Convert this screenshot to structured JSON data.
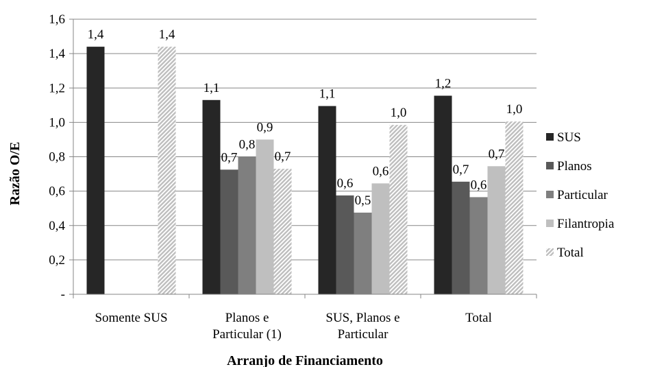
{
  "chart_data": {
    "type": "bar",
    "xlabel": "Arranjo de Financiamento",
    "ylabel": "Razão O/E",
    "ylim": [
      0,
      1.6
    ],
    "yticks": [
      0,
      0.2,
      0.4,
      0.6,
      0.8,
      1.0,
      1.2,
      1.4,
      1.6
    ],
    "ytick_labels": [
      "-",
      "0,2",
      "0,4",
      "0,6",
      "0,8",
      "1,0",
      "1,2",
      "1,4",
      "1,6"
    ],
    "grid": true,
    "legend_position": "right",
    "categories": [
      [
        "Somente SUS"
      ],
      [
        "Planos e",
        "Particular (1)"
      ],
      [
        "SUS, Planos e",
        "Particular"
      ],
      [
        "Total"
      ]
    ],
    "series": [
      {
        "name": "SUS",
        "color": "#262626",
        "pattern": "solid",
        "values": [
          1.44,
          1.13,
          1.095,
          1.155
        ],
        "labels": [
          "1,4",
          "1,1",
          "1,1",
          "1,2"
        ]
      },
      {
        "name": "Planos",
        "color": "#595959",
        "pattern": "solid",
        "values": [
          null,
          0.725,
          0.575,
          0.655
        ],
        "labels": [
          "",
          "0,7",
          "0,6",
          "0,7"
        ]
      },
      {
        "name": "Particular",
        "color": "#7f7f7f",
        "pattern": "solid",
        "values": [
          null,
          0.8,
          0.475,
          0.565
        ],
        "labels": [
          "",
          "0,8",
          "0,5",
          "0,6"
        ]
      },
      {
        "name": "Filantropia",
        "color": "#bfbfbf",
        "pattern": "solid",
        "values": [
          null,
          0.9,
          0.645,
          0.745
        ],
        "labels": [
          "",
          "0,9",
          "0,6",
          "0,7"
        ]
      },
      {
        "name": "Total",
        "color": "#bfbfbf",
        "pattern": "hatch",
        "values": [
          1.44,
          0.73,
          0.985,
          1.005
        ],
        "labels": [
          "1,4",
          "0,7",
          "1,0",
          "1,0"
        ]
      }
    ]
  }
}
